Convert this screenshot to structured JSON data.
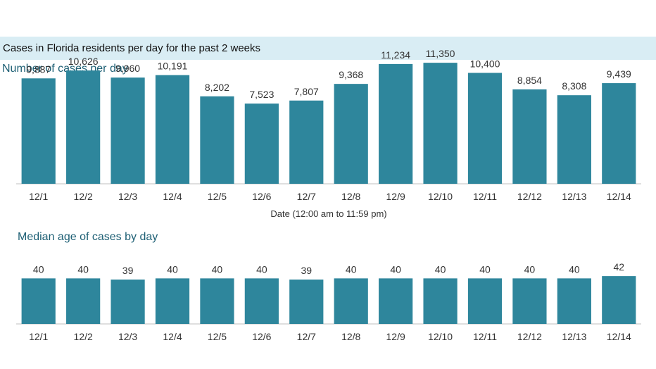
{
  "banner": "Cases in Florida residents per day for the past 2 weeks",
  "colors": {
    "bar": "#2e869c",
    "axis": "#bfbfbf",
    "banner_bg": "#d9edf4",
    "title": "#1d5f74"
  },
  "chart_data": [
    {
      "type": "bar",
      "title": "Number of cases per day",
      "xlabel": "Date (12:00 am to 11:59 pm)",
      "ylabel": "",
      "grid": false,
      "categories": [
        "12/1",
        "12/2",
        "12/3",
        "12/4",
        "12/5",
        "12/6",
        "12/7",
        "12/8",
        "12/9",
        "12/10",
        "12/11",
        "12/12",
        "12/13",
        "12/14"
      ],
      "values": [
        9887,
        10626,
        9960,
        10191,
        8202,
        7523,
        7807,
        9368,
        11234,
        11350,
        10400,
        8854,
        8308,
        9439
      ],
      "value_labels": [
        "9,887",
        "10,626",
        "9,960",
        "10,191",
        "8,202",
        "7,523",
        "7,807",
        "9,368",
        "11,234",
        "11,350",
        "10,400",
        "8,854",
        "8,308",
        "9,439"
      ],
      "ylim": [
        0,
        14000
      ]
    },
    {
      "type": "bar",
      "title": "Median age of cases by day",
      "xlabel": "",
      "ylabel": "",
      "grid": false,
      "categories": [
        "12/1",
        "12/2",
        "12/3",
        "12/4",
        "12/5",
        "12/6",
        "12/7",
        "12/8",
        "12/9",
        "12/10",
        "12/11",
        "12/12",
        "12/13",
        "12/14"
      ],
      "values": [
        40,
        40,
        39,
        40,
        40,
        40,
        39,
        40,
        40,
        40,
        40,
        40,
        40,
        42
      ],
      "value_labels": [
        "40",
        "40",
        "39",
        "40",
        "40",
        "40",
        "39",
        "40",
        "40",
        "40",
        "40",
        "40",
        "40",
        "42"
      ],
      "ylim": [
        0,
        60
      ]
    }
  ]
}
